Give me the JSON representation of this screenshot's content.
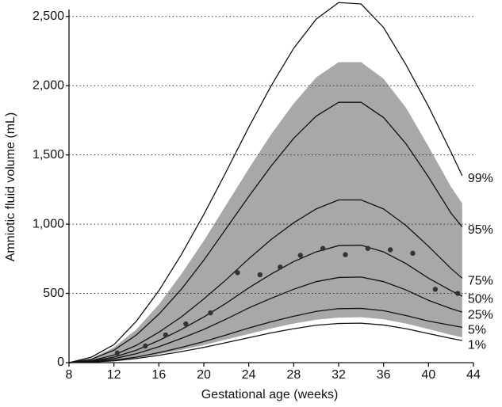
{
  "chart_data": {
    "type": "line",
    "x_label": "Gestational age (weeks)",
    "y_label": "Amniotic fluid volume (mL)",
    "x": [
      8,
      10,
      12,
      14,
      16,
      18,
      20,
      22,
      24,
      26,
      28,
      30,
      32,
      34,
      36,
      38,
      40,
      42,
      43
    ],
    "xlim": [
      8,
      44
    ],
    "xticks": [
      8,
      12,
      16,
      20,
      24,
      28,
      32,
      36,
      40,
      44
    ],
    "ylim": [
      0,
      2550
    ],
    "yticks": [
      0,
      500,
      {
        "value": 1000,
        "label": "1,000"
      },
      {
        "value": 1500,
        "label": "1,500"
      },
      {
        "value": 2000,
        "label": "2,000"
      },
      {
        "value": 2500,
        "label": "2,500"
      }
    ],
    "grid": true,
    "band": {
      "color": "#a8a8a8",
      "upper": [
        0,
        30,
        110,
        240,
        420,
        640,
        880,
        1140,
        1400,
        1650,
        1870,
        2060,
        2170,
        2170,
        2050,
        1840,
        1560,
        1270,
        1150
      ],
      "lower": [
        0,
        5,
        15,
        34,
        61,
        92,
        127,
        167,
        207,
        247,
        282,
        310,
        325,
        328,
        313,
        282,
        242,
        201,
        184
      ]
    },
    "series": [
      {
        "name": "99%",
        "color": "#111111",
        "values": [
          0,
          40,
          130,
          300,
          520,
          780,
          1070,
          1380,
          1700,
          2000,
          2270,
          2480,
          2600,
          2590,
          2420,
          2150,
          1850,
          1520,
          1350
        ]
      },
      {
        "name": "95%",
        "color": "#111111",
        "values": [
          0,
          25,
          90,
          200,
          350,
          530,
          740,
          970,
          1200,
          1420,
          1620,
          1780,
          1880,
          1880,
          1770,
          1580,
          1340,
          1080,
          980
        ]
      },
      {
        "name": "75%",
        "color": "#111111",
        "values": [
          0,
          15,
          55,
          125,
          220,
          330,
          460,
          600,
          750,
          890,
          1010,
          1110,
          1175,
          1175,
          1110,
          990,
          840,
          680,
          610
        ]
      },
      {
        "name": "50%",
        "color": "#111111",
        "values": [
          0,
          11,
          40,
          90,
          160,
          240,
          330,
          430,
          540,
          640,
          730,
          800,
          845,
          848,
          800,
          715,
          610,
          520,
          480
        ]
      },
      {
        "name": "25%",
        "color": "#111111",
        "values": [
          0,
          8,
          29,
          65,
          115,
          175,
          240,
          315,
          395,
          465,
          530,
          585,
          615,
          618,
          585,
          525,
          450,
          390,
          365
        ]
      },
      {
        "name": "5%",
        "color": "#111111",
        "values": [
          0,
          5,
          18,
          40,
          72,
          110,
          152,
          200,
          250,
          295,
          335,
          370,
          390,
          392,
          375,
          340,
          300,
          270,
          255
        ]
      },
      {
        "name": "1%",
        "color": "#111111",
        "values": [
          0,
          4,
          13,
          30,
          53,
          80,
          110,
          145,
          180,
          215,
          245,
          270,
          283,
          285,
          272,
          245,
          210,
          175,
          160
        ]
      }
    ],
    "points": {
      "color": "#333333",
      "x": [
        12.3,
        14.8,
        16.6,
        18.4,
        20.6,
        23,
        25,
        26.8,
        28.6,
        30.6,
        32.6,
        34.6,
        36.6,
        38.6,
        40.6,
        42.6
      ],
      "values": [
        70,
        120,
        200,
        280,
        360,
        650,
        635,
        690,
        775,
        825,
        780,
        825,
        815,
        790,
        530,
        500
      ]
    }
  }
}
